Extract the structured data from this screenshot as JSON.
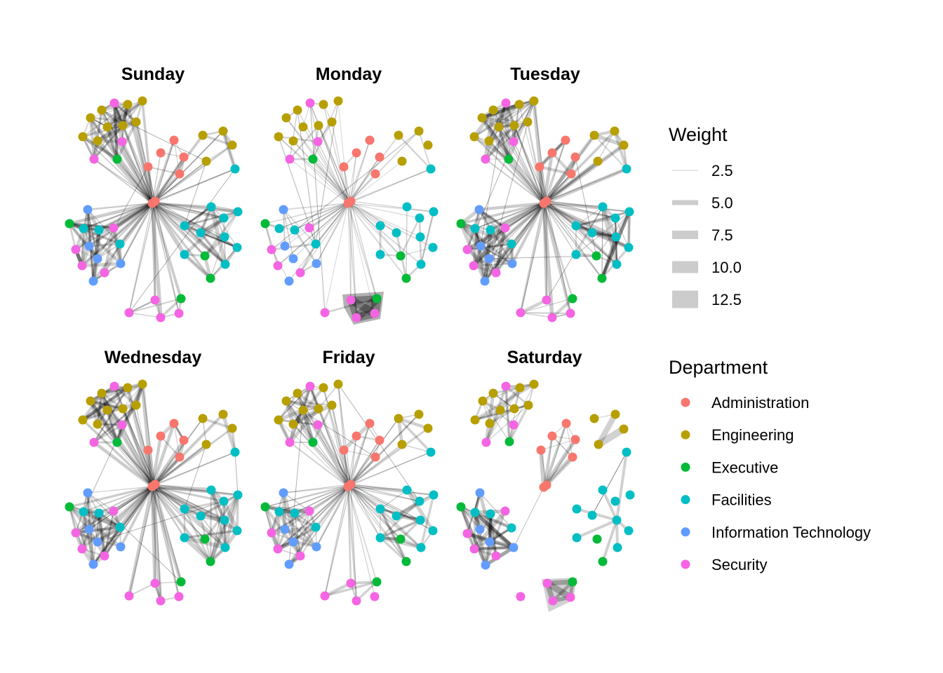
{
  "chart_data": {
    "type": "network",
    "title": "",
    "facet_by": "day",
    "panels": [
      {
        "title": "Sunday",
        "layout": "A",
        "density": "high",
        "hub_spokes": "heavy"
      },
      {
        "title": "Monday",
        "layout": "A",
        "density": "low",
        "hub_spokes": "light"
      },
      {
        "title": "Tuesday",
        "layout": "A",
        "density": "high",
        "hub_spokes": "heavy"
      },
      {
        "title": "Wednesday",
        "layout": "A",
        "density": "high",
        "hub_spokes": "heavy"
      },
      {
        "title": "Friday",
        "layout": "A",
        "density": "medium",
        "hub_spokes": "medium"
      },
      {
        "title": "Saturday",
        "layout": "B",
        "density": "clustered",
        "hub_spokes": "none"
      }
    ],
    "departments": [
      {
        "name": "Administration",
        "color": "#F8766D"
      },
      {
        "name": "Engineering",
        "color": "#B79F00"
      },
      {
        "name": "Executive",
        "color": "#00BA38"
      },
      {
        "name": "Facilities",
        "color": "#00BFC4"
      },
      {
        "name": "Information Technology",
        "color": "#619CFF"
      },
      {
        "name": "Security",
        "color": "#F564E3"
      }
    ],
    "edge_color": "#000000",
    "edge_legend_color": "#CCCCCC",
    "weight_legend": {
      "title": "Weight",
      "breaks": [
        2.5,
        5.0,
        7.5,
        10.0,
        12.5
      ],
      "labels": [
        "2.5",
        "5.0",
        "7.5",
        "10.0",
        "12.5"
      ]
    },
    "color_legend": {
      "title": "Department",
      "labels": [
        "Administration",
        "Engineering",
        "Executive",
        "Facilities",
        "Information Technology",
        "Security"
      ]
    },
    "layout_nodes": {
      "A": [
        [
          "Administration",
          0,
          0
        ],
        [
          "Administration",
          4,
          -3
        ],
        [
          "Administration",
          31,
          -90
        ],
        [
          "Administration",
          12,
          -72
        ],
        [
          "Administration",
          45,
          -66
        ],
        [
          "Administration",
          -6,
          -52
        ],
        [
          "Administration",
          39,
          -42
        ],
        [
          "Engineering",
          -72,
          -133
        ],
        [
          "Engineering",
          -35,
          -141
        ],
        [
          "Engineering",
          -14,
          -146
        ],
        [
          "Engineering",
          -88,
          -122
        ],
        [
          "Engineering",
          -64,
          -109
        ],
        [
          "Engineering",
          -42,
          -111
        ],
        [
          "Engineering",
          -23,
          -116
        ],
        [
          "Engineering",
          -99,
          -95
        ],
        [
          "Engineering",
          -78,
          -89
        ],
        [
          "Security",
          -54,
          -143
        ],
        [
          "Security",
          -43,
          -88
        ],
        [
          "Security",
          -83,
          -63
        ],
        [
          "Executive",
          -50,
          -63
        ],
        [
          "Engineering",
          72,
          -97
        ],
        [
          "Engineering",
          101,
          -103
        ],
        [
          "Engineering",
          114,
          -83
        ],
        [
          "Engineering",
          77,
          -60
        ],
        [
          "Facilities",
          118,
          -49
        ],
        [
          "Facilities",
          84,
          5
        ],
        [
          "Facilities",
          122,
          12
        ],
        [
          "Facilities",
          102,
          21
        ],
        [
          "Facilities",
          46,
          32
        ],
        [
          "Facilities",
          69,
          42
        ],
        [
          "Facilities",
          103,
          48
        ],
        [
          "Facilities",
          121,
          63
        ],
        [
          "Facilities",
          46,
          73
        ],
        [
          "Facilities",
          104,
          87
        ],
        [
          "Executive",
          75,
          75
        ],
        [
          "Executive",
          83,
          107
        ],
        [
          "Information Technology",
          -92,
          9
        ],
        [
          "Executive",
          -118,
          29
        ],
        [
          "Facilities",
          -98,
          36
        ],
        [
          "Facilities",
          -76,
          38
        ],
        [
          "Security",
          -55,
          35
        ],
        [
          "Information Technology",
          -90,
          61
        ],
        [
          "Facilities",
          -46,
          58
        ],
        [
          "Security",
          -109,
          66
        ],
        [
          "Information Technology",
          -78,
          79
        ],
        [
          "Security",
          -100,
          89
        ],
        [
          "Information Technology",
          -45,
          86
        ],
        [
          "Security",
          -68,
          99
        ],
        [
          "Information Technology",
          -84,
          111
        ],
        [
          "Security",
          -33,
          156
        ],
        [
          "Security",
          4,
          138
        ],
        [
          "Executive",
          41,
          136
        ],
        [
          "Security",
          38,
          157
        ],
        [
          "Security",
          12,
          163
        ]
      ],
      "B": [
        [
          "Administration",
          0,
          0
        ],
        [
          "Administration",
          4,
          -3
        ],
        [
          "Administration",
          32,
          -91
        ],
        [
          "Administration",
          12,
          -73
        ],
        [
          "Administration",
          45,
          -68
        ],
        [
          "Administration",
          -4,
          -53
        ],
        [
          "Administration",
          41,
          -43
        ],
        [
          "Security",
          -54,
          -144
        ],
        [
          "Engineering",
          -34,
          -142
        ],
        [
          "Engineering",
          -14,
          -147
        ],
        [
          "Engineering",
          -72,
          -134
        ],
        [
          "Engineering",
          -87,
          -123
        ],
        [
          "Engineering",
          -62,
          -110
        ],
        [
          "Engineering",
          -42,
          -112
        ],
        [
          "Engineering",
          -22,
          -117
        ],
        [
          "Engineering",
          -98,
          -96
        ],
        [
          "Engineering",
          -77,
          -91
        ],
        [
          "Security",
          -43,
          -89
        ],
        [
          "Security",
          -82,
          -64
        ],
        [
          "Executive",
          -49,
          -65
        ],
        [
          "Engineering",
          72,
          -98
        ],
        [
          "Engineering",
          102,
          -104
        ],
        [
          "Engineering",
          114,
          -83
        ],
        [
          "Engineering",
          78,
          -61
        ],
        [
          "Facilities",
          118,
          -50
        ],
        [
          "Facilities",
          84,
          4
        ],
        [
          "Facilities",
          123,
          11
        ],
        [
          "Facilities",
          102,
          20
        ],
        [
          "Facilities",
          47,
          31
        ],
        [
          "Facilities",
          69,
          40
        ],
        [
          "Facilities",
          104,
          47
        ],
        [
          "Facilities",
          121,
          62
        ],
        [
          "Facilities",
          47,
          72
        ],
        [
          "Executive",
          76,
          74
        ],
        [
          "Facilities",
          105,
          86
        ],
        [
          "Executive",
          84,
          106
        ],
        [
          "Information Technology",
          -91,
          8
        ],
        [
          "Executive",
          -118,
          28
        ],
        [
          "Facilities",
          -98,
          36
        ],
        [
          "Facilities",
          -76,
          38
        ],
        [
          "Security",
          -55,
          34
        ],
        [
          "Information Technology",
          -91,
          60
        ],
        [
          "Facilities",
          -46,
          58
        ],
        [
          "Security",
          -109,
          66
        ],
        [
          "Information Technology",
          -77,
          78
        ],
        [
          "Security",
          -99,
          88
        ],
        [
          "Information Technology",
          -43,
          86
        ],
        [
          "Security",
          -68,
          98
        ],
        [
          "Information Technology",
          -83,
          111
        ],
        [
          "Security",
          -33,
          156
        ],
        [
          "Security",
          5,
          137
        ],
        [
          "Executive",
          41,
          135
        ],
        [
          "Security",
          38,
          157
        ],
        [
          "Security",
          13,
          162
        ]
      ]
    }
  }
}
